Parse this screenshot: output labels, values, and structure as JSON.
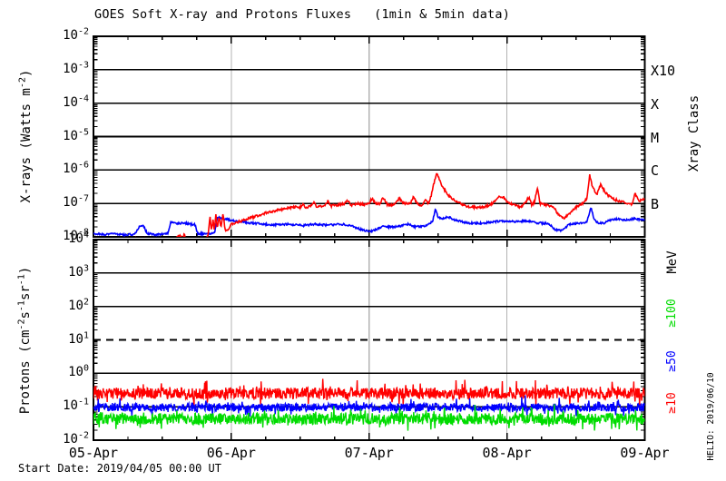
{
  "title": "GOES Soft X-ray and Protons Fluxes   (1min & 5min data)",
  "footer": {
    "start_date": "Start Date: 2019/04/05 00:00 UT"
  },
  "watermark": "HELIO: 2019/06/10",
  "colors": {
    "red": "#FF0000",
    "blue": "#0000FF",
    "green": "#00DC00",
    "grid": "#B3B3B3",
    "axis": "#000000",
    "bg": "#FFFFFF"
  },
  "x_axis": {
    "tick_labels": [
      "05-Apr",
      "06-Apr",
      "07-Apr",
      "08-Apr",
      "09-Apr"
    ],
    "minor_ticks_per_day": 4,
    "span_days": 4
  },
  "chart_data": [
    {
      "type": "line",
      "panel": "xray",
      "ylabel": "X-rays (Watts m^{-2})",
      "y_log_range": [
        -8,
        -2
      ],
      "y_tick_exponents": [
        -2,
        -3,
        -4,
        -5,
        -6,
        -7,
        -8
      ],
      "grid": {
        "solid_logs": [
          -3,
          -4,
          -5,
          -6,
          -7
        ],
        "dashed_logs": []
      },
      "right_axis_title": "Xray Class",
      "right_labels": [
        {
          "label": "X10",
          "color": "axis",
          "log": -3
        },
        {
          "label": "X",
          "color": "axis",
          "log": -4
        },
        {
          "label": "M",
          "color": "axis",
          "log": -5
        },
        {
          "label": "C",
          "color": "axis",
          "log": -6
        },
        {
          "label": "B",
          "color": "axis",
          "log": -7
        }
      ],
      "series": [
        {
          "name": "xray-short-wave",
          "color": "blue",
          "noise": 0.03,
          "keypoints": [
            [
              0,
              -7.9
            ],
            [
              0.08,
              -7.93
            ],
            [
              0.15,
              -7.9
            ],
            [
              0.22,
              -7.94
            ],
            [
              0.3,
              -7.92
            ],
            [
              0.33,
              -7.7
            ],
            [
              0.36,
              -7.65
            ],
            [
              0.39,
              -7.9
            ],
            [
              0.45,
              -7.94
            ],
            [
              0.54,
              -7.9
            ],
            [
              0.56,
              -7.56
            ],
            [
              0.6,
              -7.6
            ],
            [
              0.65,
              -7.58
            ],
            [
              0.7,
              -7.62
            ],
            [
              0.74,
              -7.64
            ],
            [
              0.755,
              -7.9
            ],
            [
              0.83,
              -7.92
            ],
            [
              0.88,
              -7.86
            ],
            [
              0.9,
              -7.42
            ],
            [
              0.95,
              -7.46
            ],
            [
              1,
              -7.5
            ],
            [
              1.08,
              -7.56
            ],
            [
              1.18,
              -7.6
            ],
            [
              1.3,
              -7.64
            ],
            [
              1.42,
              -7.62
            ],
            [
              1.52,
              -7.66
            ],
            [
              1.6,
              -7.62
            ],
            [
              1.7,
              -7.65
            ],
            [
              1.8,
              -7.62
            ],
            [
              1.88,
              -7.68
            ],
            [
              1.94,
              -7.78
            ],
            [
              2,
              -7.84
            ],
            [
              2.05,
              -7.78
            ],
            [
              2.1,
              -7.7
            ],
            [
              2.2,
              -7.7
            ],
            [
              2.28,
              -7.62
            ],
            [
              2.33,
              -7.7
            ],
            [
              2.4,
              -7.68
            ],
            [
              2.46,
              -7.55
            ],
            [
              2.48,
              -7.17
            ],
            [
              2.5,
              -7.4
            ],
            [
              2.53,
              -7.48
            ],
            [
              2.57,
              -7.4
            ],
            [
              2.63,
              -7.5
            ],
            [
              2.7,
              -7.58
            ],
            [
              2.8,
              -7.6
            ],
            [
              2.9,
              -7.55
            ],
            [
              3,
              -7.52
            ],
            [
              3.08,
              -7.55
            ],
            [
              3.15,
              -7.52
            ],
            [
              3.22,
              -7.58
            ],
            [
              3.3,
              -7.6
            ],
            [
              3.35,
              -7.78
            ],
            [
              3.4,
              -7.82
            ],
            [
              3.45,
              -7.62
            ],
            [
              3.52,
              -7.6
            ],
            [
              3.58,
              -7.56
            ],
            [
              3.61,
              -7.1
            ],
            [
              3.63,
              -7.45
            ],
            [
              3.66,
              -7.58
            ],
            [
              3.7,
              -7.6
            ],
            [
              3.74,
              -7.5
            ],
            [
              3.8,
              -7.46
            ],
            [
              3.86,
              -7.5
            ],
            [
              3.92,
              -7.46
            ],
            [
              4,
              -7.5
            ]
          ]
        },
        {
          "name": "xray-long-wave",
          "color": "red",
          "noise": 0.035,
          "keypoints": [
            [
              0,
              -8.08
            ],
            [
              0.58,
              -8.08
            ],
            [
              0.63,
              -7.95
            ],
            [
              0.645,
              -8.08
            ],
            [
              0.66,
              -7.9
            ],
            [
              0.67,
              -8.08
            ],
            [
              0.82,
              -8.08
            ],
            [
              0.835,
              -7.85
            ],
            [
              0.845,
              -7.35
            ],
            [
              0.855,
              -7.8
            ],
            [
              0.868,
              -7.5
            ],
            [
              0.878,
              -7.82
            ],
            [
              0.888,
              -7.3
            ],
            [
              0.898,
              -7.75
            ],
            [
              0.912,
              -7.4
            ],
            [
              0.926,
              -7.72
            ],
            [
              0.94,
              -7.32
            ],
            [
              0.955,
              -7.78
            ],
            [
              0.97,
              -7.82
            ],
            [
              1,
              -7.62
            ],
            [
              1.05,
              -7.55
            ],
            [
              1.1,
              -7.48
            ],
            [
              1.15,
              -7.42
            ],
            [
              1.2,
              -7.35
            ],
            [
              1.27,
              -7.27
            ],
            [
              1.33,
              -7.2
            ],
            [
              1.4,
              -7.15
            ],
            [
              1.46,
              -7.1
            ],
            [
              1.5,
              -7.12
            ],
            [
              1.52,
              -7
            ],
            [
              1.54,
              -7.12
            ],
            [
              1.58,
              -7.08
            ],
            [
              1.6,
              -6.95
            ],
            [
              1.62,
              -7.1
            ],
            [
              1.68,
              -7.06
            ],
            [
              1.7,
              -6.92
            ],
            [
              1.72,
              -7.08
            ],
            [
              1.78,
              -7.04
            ],
            [
              1.82,
              -7
            ],
            [
              1.84,
              -6.9
            ],
            [
              1.87,
              -7.06
            ],
            [
              1.92,
              -7
            ],
            [
              1.97,
              -7.03
            ],
            [
              2,
              -7
            ],
            [
              2.02,
              -6.85
            ],
            [
              2.05,
              -7
            ],
            [
              2.08,
              -7
            ],
            [
              2.1,
              -6.82
            ],
            [
              2.13,
              -7.02
            ],
            [
              2.17,
              -7.06
            ],
            [
              2.2,
              -6.95
            ],
            [
              2.22,
              -6.85
            ],
            [
              2.25,
              -7
            ],
            [
              2.3,
              -7
            ],
            [
              2.32,
              -6.8
            ],
            [
              2.35,
              -7
            ],
            [
              2.38,
              -7.06
            ],
            [
              2.41,
              -6.9
            ],
            [
              2.43,
              -7
            ],
            [
              2.45,
              -6.78
            ],
            [
              2.47,
              -6.4
            ],
            [
              2.49,
              -6.07
            ],
            [
              2.51,
              -6.3
            ],
            [
              2.54,
              -6.55
            ],
            [
              2.58,
              -6.78
            ],
            [
              2.62,
              -6.9
            ],
            [
              2.67,
              -7.02
            ],
            [
              2.72,
              -7.1
            ],
            [
              2.8,
              -7.12
            ],
            [
              2.87,
              -7.06
            ],
            [
              2.91,
              -6.95
            ],
            [
              2.94,
              -6.78
            ],
            [
              2.97,
              -6.8
            ],
            [
              3,
              -6.95
            ],
            [
              3.05,
              -7.05
            ],
            [
              3.1,
              -7.1
            ],
            [
              3.13,
              -7
            ],
            [
              3.16,
              -6.8
            ],
            [
              3.18,
              -7.05
            ],
            [
              3.2,
              -6.95
            ],
            [
              3.22,
              -6.52
            ],
            [
              3.24,
              -7
            ],
            [
              3.28,
              -7.05
            ],
            [
              3.33,
              -7.08
            ],
            [
              3.37,
              -7.3
            ],
            [
              3.41,
              -7.45
            ],
            [
              3.44,
              -7.35
            ],
            [
              3.5,
              -7.12
            ],
            [
              3.55,
              -7
            ],
            [
              3.58,
              -6.85
            ],
            [
              3.6,
              -6.15
            ],
            [
              3.62,
              -6.5
            ],
            [
              3.65,
              -6.75
            ],
            [
              3.68,
              -6.42
            ],
            [
              3.71,
              -6.65
            ],
            [
              3.74,
              -6.78
            ],
            [
              3.78,
              -6.88
            ],
            [
              3.83,
              -6.94
            ],
            [
              3.88,
              -7
            ],
            [
              3.91,
              -7.03
            ],
            [
              3.93,
              -6.7
            ],
            [
              3.96,
              -6.92
            ],
            [
              4,
              -6.85
            ]
          ]
        }
      ]
    },
    {
      "type": "line",
      "panel": "protons",
      "ylabel": "Protons (cm^{-2}s^{-1}sr^{-1})",
      "y_log_range": [
        -2,
        4
      ],
      "y_tick_exponents": [
        4,
        3,
        2,
        1,
        0,
        -1,
        -2
      ],
      "grid": {
        "solid_logs": [
          3,
          2,
          0,
          -1
        ],
        "dashed_logs": [
          1
        ]
      },
      "right_axis_title": "MeV",
      "right_labels": [
        {
          "label": "≥100",
          "color": "green",
          "log": 1.8
        },
        {
          "label": "≥50",
          "color": "blue",
          "log": 0.36
        },
        {
          "label": "≥10",
          "color": "red",
          "log": -0.89
        }
      ],
      "series": [
        {
          "name": "protons-ge10MeV",
          "color": "red",
          "base_log": -0.6,
          "noise": 0.17,
          "spike": 0.33
        },
        {
          "name": "protons-ge50MeV",
          "color": "blue",
          "base_log": -1.02,
          "noise": 0.12,
          "spike": 0.28
        },
        {
          "name": "protons-ge100MeV",
          "color": "green",
          "base_log": -1.36,
          "noise": 0.17,
          "spike": 0.3
        }
      ]
    }
  ]
}
